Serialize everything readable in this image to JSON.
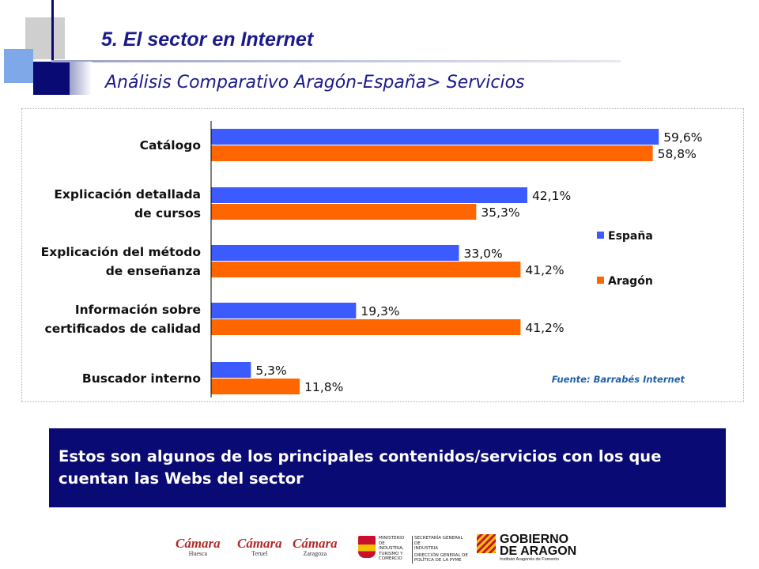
{
  "header": {
    "title": "5. El sector en Internet",
    "subtitle": "Análisis Comparativo Aragón-España> Servicios"
  },
  "colors": {
    "espana": "#3b5bff",
    "aragon": "#ff6600",
    "title": "#1a1a8c",
    "info_bg": "#0a0a74"
  },
  "chart_data": {
    "type": "bar",
    "orientation": "horizontal",
    "categories": [
      [
        "Catálogo"
      ],
      [
        "Explicación detallada",
        "de cursos"
      ],
      [
        "Explicación del método",
        "de enseñanza"
      ],
      [
        "Información sobre",
        "certificados de calidad"
      ],
      [
        "Buscador interno"
      ]
    ],
    "series": [
      {
        "name": "España",
        "values": [
          59.6,
          42.1,
          33.0,
          19.3,
          5.3
        ],
        "labels": [
          "59,6%",
          "42,1%",
          "33,0%",
          "19,3%",
          "5,3%"
        ]
      },
      {
        "name": "Aragón",
        "values": [
          58.8,
          35.3,
          41.2,
          41.2,
          11.8
        ],
        "labels": [
          "58,8%",
          "35,3%",
          "41,2%",
          "41,2%",
          "11,8%"
        ]
      }
    ],
    "legend": "right",
    "source": "Fuente: Barrabés Internet",
    "grid": false
  },
  "info_text": "Estos son algunos de los principales contenidos/servicios con los que cuentan las Webs del sector",
  "logos": {
    "camara_word": "Cámara",
    "camara_cities": [
      "Huesca",
      "Teruel",
      "Zaragoza"
    ],
    "ministerio_lines": [
      "MINISTERIO",
      "DE INDUSTRIA,",
      "TURISMO Y",
      "COMERCIO"
    ],
    "secretaria_lines": [
      "SECRETARÍA GENERAL DE",
      "INDUSTRIA"
    ],
    "direccion_lines": [
      "DIRECCIÓN GENERAL DE",
      "POLÍTICA DE LA PYME"
    ],
    "gobierno_lines": [
      "GOBIERNO",
      "DE ARAGON"
    ],
    "gobierno_sub": "Instituto Aragonés de Fomento"
  }
}
